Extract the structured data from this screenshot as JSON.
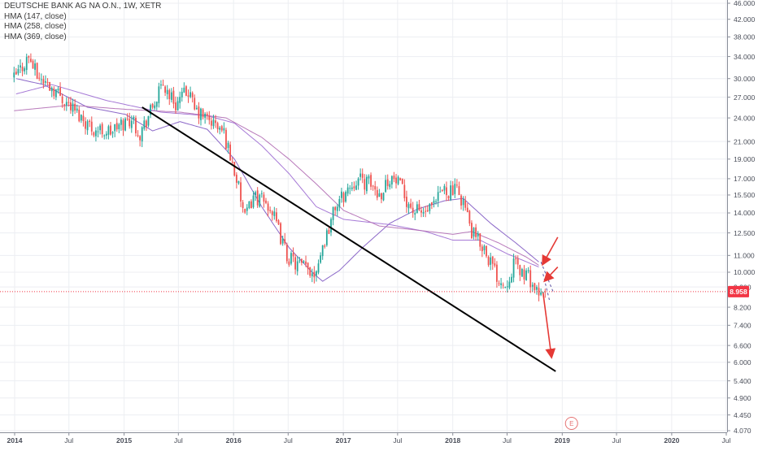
{
  "chart_data": {
    "type": "candlestick",
    "title": "DEUTSCHE BANK AG NA O.N., 1W, XETR",
    "scale": "log",
    "grid": true,
    "ylim": [
      4.07,
      46.0
    ],
    "y_ticks": [
      "46.000",
      "42.000",
      "38.000",
      "34.000",
      "30.000",
      "27.000",
      "24.000",
      "21.000",
      "19.000",
      "17.000",
      "15.500",
      "14.000",
      "12.500",
      "11.000",
      "10.000",
      "9.200",
      "8.200",
      "7.400",
      "6.600",
      "6.000",
      "5.400",
      "4.900",
      "4.450",
      "4.070"
    ],
    "x_ticks": [
      {
        "label": "2014",
        "date": "2014-01-01"
      },
      {
        "label": "Jul",
        "date": "2014-07-01"
      },
      {
        "label": "2015",
        "date": "2015-01-01"
      },
      {
        "label": "Jul",
        "date": "2015-07-01"
      },
      {
        "label": "2016",
        "date": "2016-01-01"
      },
      {
        "label": "Jul",
        "date": "2016-07-01"
      },
      {
        "label": "2017",
        "date": "2017-01-01"
      },
      {
        "label": "Jul",
        "date": "2017-07-01"
      },
      {
        "label": "2018",
        "date": "2018-01-01"
      },
      {
        "label": "Jul",
        "date": "2018-07-01"
      },
      {
        "label": "2019",
        "date": "2019-01-01"
      },
      {
        "label": "Jul",
        "date": "2019-07-01"
      },
      {
        "label": "2020",
        "date": "2020-01-01"
      },
      {
        "label": "Jul",
        "date": "2020-07-01"
      }
    ],
    "last_price": {
      "label": "8.958",
      "value": 8.958,
      "color": "#f23645"
    },
    "legend": [
      "HMA (147, close)",
      "HMA (258, close)",
      "HMA (369, close)"
    ],
    "series": [
      {
        "name": "Price",
        "type": "candlestick",
        "key_points": [
          [
            "2013-12-30",
            30.0
          ],
          [
            "2014-02-17",
            34.0
          ],
          [
            "2014-03-17",
            30.5
          ],
          [
            "2014-05-19",
            28.0
          ],
          [
            "2014-07-21",
            25.0
          ],
          [
            "2014-09-22",
            22.5
          ],
          [
            "2014-11-17",
            22.2
          ],
          [
            "2015-01-26",
            24.0
          ],
          [
            "2015-02-23",
            22.0
          ],
          [
            "2015-04-06",
            25.5
          ],
          [
            "2015-05-11",
            29.0
          ],
          [
            "2015-06-22",
            26.0
          ],
          [
            "2015-08-03",
            28.0
          ],
          [
            "2015-08-24",
            25.0
          ],
          [
            "2015-10-19",
            23.5
          ],
          [
            "2015-11-30",
            22.0
          ],
          [
            "2016-01-11",
            17.0
          ],
          [
            "2016-02-08",
            13.5
          ],
          [
            "2016-03-07",
            15.5
          ],
          [
            "2016-05-02",
            14.5
          ],
          [
            "2016-06-27",
            11.0
          ],
          [
            "2016-07-25",
            10.5
          ],
          [
            "2016-09-26",
            10.0
          ],
          [
            "2016-10-31",
            12.0
          ],
          [
            "2016-12-05",
            14.5
          ],
          [
            "2017-01-16",
            16.0
          ],
          [
            "2017-02-13",
            17.0
          ],
          [
            "2017-04-03",
            16.5
          ],
          [
            "2017-05-01",
            15.5
          ],
          [
            "2017-06-05",
            17.2
          ],
          [
            "2017-07-03",
            16.5
          ],
          [
            "2017-08-21",
            14.2
          ],
          [
            "2017-09-25",
            14.0
          ],
          [
            "2017-10-30",
            14.4
          ],
          [
            "2017-11-27",
            16.0
          ],
          [
            "2018-01-15",
            15.8
          ],
          [
            "2018-02-05",
            15.0
          ],
          [
            "2018-03-05",
            12.5
          ],
          [
            "2018-04-16",
            11.5
          ],
          [
            "2018-05-28",
            9.8
          ],
          [
            "2018-06-25",
            9.3
          ],
          [
            "2018-07-23",
            10.5
          ],
          [
            "2018-08-20",
            10.0
          ],
          [
            "2018-09-17",
            9.6
          ],
          [
            "2018-10-15",
            8.6
          ],
          [
            "2018-11-05",
            8.958
          ]
        ]
      },
      {
        "name": "HMA (147, close)",
        "color": "#7e57c2",
        "points": [
          [
            "2014-01-06",
            30.0
          ],
          [
            "2014-04-07",
            29.0
          ],
          [
            "2014-09-01",
            25.5
          ],
          [
            "2015-01-05",
            24.5
          ],
          [
            "2015-04-06",
            22.3
          ],
          [
            "2015-07-06",
            23.5
          ],
          [
            "2015-10-05",
            22.5
          ],
          [
            "2016-01-04",
            19.0
          ],
          [
            "2016-04-04",
            14.5
          ],
          [
            "2016-07-04",
            11.5
          ],
          [
            "2016-09-19",
            10.0
          ],
          [
            "2016-10-24",
            9.5
          ],
          [
            "2016-12-19",
            10.1
          ],
          [
            "2017-03-06",
            11.5
          ],
          [
            "2017-06-05",
            13.2
          ],
          [
            "2017-09-04",
            14.3
          ],
          [
            "2017-12-04",
            15.0
          ],
          [
            "2018-02-05",
            15.2
          ],
          [
            "2018-05-07",
            13.2
          ],
          [
            "2018-08-06",
            11.7
          ],
          [
            "2018-10-15",
            10.6
          ]
        ]
      },
      {
        "name": "HMA (258, close)",
        "color": "#9c6ad2",
        "points": [
          [
            "2014-01-06",
            27.5
          ],
          [
            "2014-05-05",
            29.0
          ],
          [
            "2014-11-03",
            26.5
          ],
          [
            "2015-05-04",
            24.8
          ],
          [
            "2015-10-05",
            24.3
          ],
          [
            "2016-01-04",
            23.3
          ],
          [
            "2016-04-04",
            20.5
          ],
          [
            "2016-07-04",
            17.5
          ],
          [
            "2016-10-03",
            14.5
          ],
          [
            "2017-01-02",
            13.5
          ],
          [
            "2017-06-05",
            13.1
          ],
          [
            "2017-10-02",
            12.6
          ],
          [
            "2018-01-01",
            12.0
          ],
          [
            "2018-04-02",
            12.0
          ],
          [
            "2018-07-02",
            11.1
          ],
          [
            "2018-10-15",
            10.3
          ]
        ]
      },
      {
        "name": "HMA (369, close)",
        "color": "#b06ab3",
        "points": [
          [
            "2013-12-30",
            25.0
          ],
          [
            "2014-07-07",
            25.8
          ],
          [
            "2015-01-05",
            25.2
          ],
          [
            "2015-07-06",
            24.8
          ],
          [
            "2015-12-07",
            24.0
          ],
          [
            "2016-04-04",
            21.5
          ],
          [
            "2016-07-04",
            19.0
          ],
          [
            "2016-10-03",
            16.5
          ],
          [
            "2017-01-02",
            14.2
          ],
          [
            "2017-05-01",
            13.0
          ],
          [
            "2017-09-04",
            12.7
          ],
          [
            "2018-01-01",
            12.4
          ],
          [
            "2018-03-05",
            12.6
          ],
          [
            "2018-06-04",
            11.8
          ],
          [
            "2018-09-03",
            10.9
          ],
          [
            "2018-10-15",
            10.4
          ]
        ]
      }
    ],
    "annotations": {
      "trendline": {
        "from": [
          "2015-03-02",
          25.5
        ],
        "to": [
          "2018-12-10",
          5.7
        ],
        "color": "#000000"
      },
      "arrows": [
        {
          "from": [
            "2018-12-17",
            12.2
          ],
          "to": [
            "2018-10-29",
            10.5
          ],
          "color": "#e53935"
        },
        {
          "from": [
            "2018-12-17",
            10.3
          ],
          "to": [
            "2018-11-05",
            9.55
          ],
          "color": "#e53935"
        },
        {
          "from": [
            "2018-10-29",
            8.9
          ],
          "to": [
            "2018-11-26",
            6.2
          ],
          "color": "#e53935"
        }
      ],
      "earnings_marker": {
        "label": "E",
        "date": "2019-02-01"
      }
    }
  }
}
